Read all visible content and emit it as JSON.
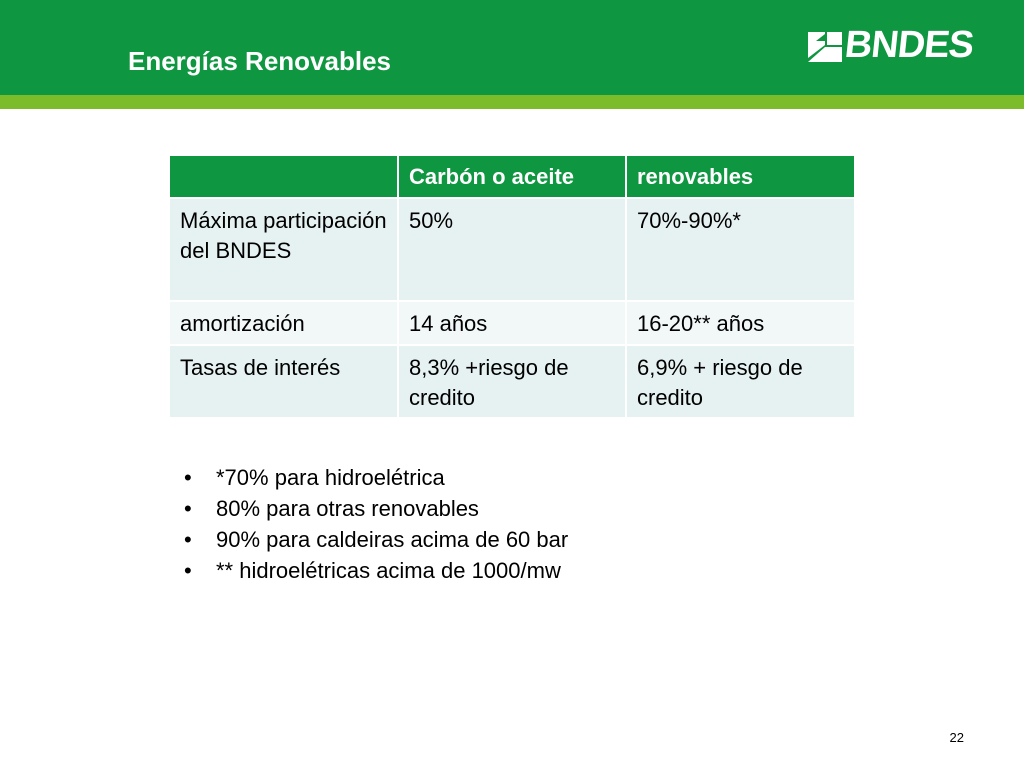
{
  "slide": {
    "title": "Energías Renovables",
    "page_number": "22"
  },
  "logo": {
    "text": "BNDES",
    "icon": "bndes-logo-icon"
  },
  "colors": {
    "header_green": "#0f9640",
    "stripe_light_green": "#7cbc2b",
    "table_header_green": "#0f9640",
    "row_shade_a": "#e6f1f2",
    "row_shade_b": "#f2f7f8"
  },
  "table": {
    "headers": [
      "",
      "Carbón o aceite",
      "renovables"
    ],
    "rows": [
      [
        "Máxima participación del BNDES",
        "50%",
        "70%-90%*"
      ],
      [
        "amortización",
        "14 años",
        "16-20** años"
      ],
      [
        "Tasas de interés",
        "8,3% +riesgo de credito",
        "6,9% + riesgo de credito"
      ]
    ]
  },
  "notes": {
    "bullet": "•",
    "items": [
      "*70% para hidroelétrica",
      "80% para otras renovables",
      "90% para caldeiras acima de 60 bar",
      "** hidroelétricas acima de 1000/mw"
    ]
  }
}
